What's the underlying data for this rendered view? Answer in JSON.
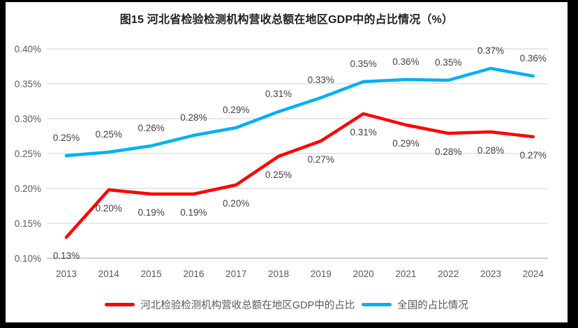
{
  "chart_data": {
    "type": "line",
    "title": "图15 河北省检验检测机构营收总额在地区GDP中的占比情况（%）",
    "categories": [
      "2013",
      "2014",
      "2015",
      "2016",
      "2017",
      "2018",
      "2019",
      "2020",
      "2021",
      "2022",
      "2023",
      "2024"
    ],
    "series": [
      {
        "name": "河北检验检测机构营收总额在地区GDP中的占比",
        "color": "#FF0000",
        "values": [
          0.13,
          0.2,
          0.19,
          0.19,
          0.2,
          0.25,
          0.27,
          0.31,
          0.29,
          0.28,
          0.28,
          0.27
        ],
        "labels": [
          "0.13%",
          "0.20%",
          "0.19%",
          "0.19%",
          "0.20%",
          "0.25%",
          "0.27%",
          "0.31%",
          "0.29%",
          "0.28%",
          "0.28%",
          "0.27%"
        ],
        "plot_values": [
          0.13,
          0.198,
          0.192,
          0.192,
          0.205,
          0.246,
          0.268,
          0.307,
          0.291,
          0.279,
          0.281,
          0.274
        ],
        "label_position": "below"
      },
      {
        "name": "全国的占比情况",
        "color": "#00B0F0",
        "values": [
          0.25,
          0.25,
          0.26,
          0.28,
          0.29,
          0.31,
          0.33,
          0.35,
          0.36,
          0.35,
          0.37,
          0.36
        ],
        "labels": [
          "0.25%",
          "0.25%",
          "0.26%",
          "0.28%",
          "0.29%",
          "0.31%",
          "0.33%",
          "0.35%",
          "0.36%",
          "0.35%",
          "0.37%",
          "0.36%"
        ],
        "plot_values": [
          0.247,
          0.252,
          0.261,
          0.276,
          0.287,
          0.31,
          0.33,
          0.353,
          0.356,
          0.355,
          0.372,
          0.361
        ],
        "label_position": "above"
      }
    ],
    "y_axis": {
      "tick_labels": [
        "0.40%",
        "0.35%",
        "0.30%",
        "0.25%",
        "0.20%",
        "0.15%",
        "0.10%"
      ],
      "tick_values": [
        0.4,
        0.35,
        0.3,
        0.25,
        0.2,
        0.15,
        0.1
      ],
      "min": 0.1,
      "max": 0.4
    },
    "grid": true,
    "legend_position": "bottom",
    "colors": {
      "gridline": "#D9D9D9",
      "axis_line": "#D0D0D0",
      "axis_text": "#595959",
      "data_label": "#404040",
      "title_text": "#1F1F1F",
      "frame": "#000000",
      "plot_background": "#FFFFFF"
    }
  }
}
